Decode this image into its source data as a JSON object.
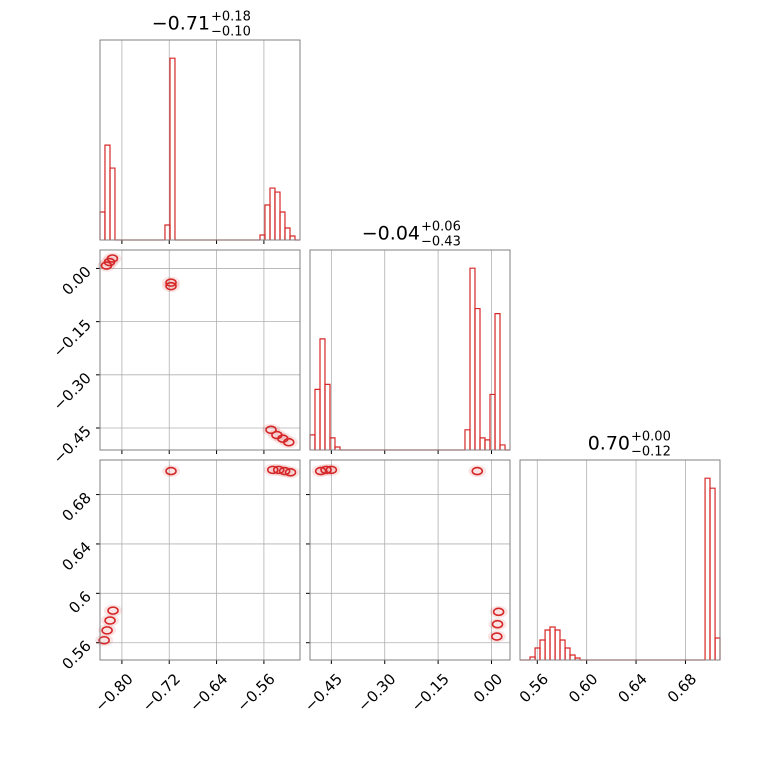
{
  "chart_data": [
    {
      "type": "histogram",
      "title": {
        "value": "−0.71",
        "upper": "+0.18",
        "lower": "−0.10"
      },
      "color": "#d62728",
      "grid": true,
      "xlim": [
        -0.837,
        -0.499
      ],
      "xticks": [
        -0.8,
        -0.72,
        -0.64,
        -0.56
      ],
      "bins": [
        -0.837,
        -0.8286,
        -0.8201,
        -0.8117,
        -0.8032,
        -0.7948,
        -0.7863,
        -0.7779,
        -0.7694,
        -0.761,
        -0.7525,
        -0.7441,
        -0.7356,
        -0.7272,
        -0.7187,
        -0.7103,
        -0.7018,
        -0.6934,
        -0.6849,
        -0.6765,
        -0.668,
        -0.6596,
        -0.6511,
        -0.6427,
        -0.6342,
        -0.6258,
        -0.6173,
        -0.6089,
        -0.6004,
        -0.592,
        -0.5835,
        -0.5751,
        -0.5666,
        -0.5582,
        -0.5497,
        -0.5413,
        -0.5328,
        -0.5244,
        -0.5159,
        -0.5075,
        -0.499
      ],
      "values": [
        28,
        95,
        72,
        0,
        0,
        0,
        0,
        0,
        0,
        0,
        0,
        0,
        0,
        15,
        182,
        0,
        0,
        0,
        0,
        0,
        0,
        0,
        0,
        0,
        0,
        0,
        0,
        0,
        0,
        0,
        0,
        0,
        5,
        35,
        52,
        48,
        28,
        12,
        4,
        0
      ]
    },
    {
      "type": "scatter",
      "color": "#d62728",
      "grid": true,
      "xlim": [
        -0.837,
        -0.499
      ],
      "xticks": [
        -0.8,
        -0.72,
        -0.64,
        -0.56
      ],
      "ylim": [
        -0.512,
        0.052
      ],
      "yticks": [
        {
          "value": 0,
          "label": "0.00"
        },
        {
          "value": -0.15,
          "label": "−0.15"
        },
        {
          "value": -0.3,
          "label": "−0.30"
        },
        {
          "value": -0.45,
          "label": "−0.45"
        }
      ],
      "x": [
        -0.826,
        -0.821,
        -0.816,
        -0.717,
        -0.717,
        -0.548,
        -0.538,
        -0.528,
        -0.518
      ],
      "y": [
        0.008,
        0.018,
        0.028,
        -0.04,
        -0.05,
        -0.455,
        -0.47,
        -0.48,
        -0.49
      ]
    },
    {
      "type": "histogram",
      "title": {
        "value": "−0.04",
        "upper": "+0.06",
        "lower": "−0.43"
      },
      "color": "#d62728",
      "grid": true,
      "xlim": [
        -0.51,
        0.052
      ],
      "xticks": [
        -0.45,
        -0.3,
        -0.15,
        0
      ],
      "bins": [
        -0.51,
        -0.496,
        -0.4819,
        -0.4679,
        -0.4538,
        -0.4398,
        -0.4257,
        -0.4117,
        -0.3976,
        -0.3836,
        -0.3695,
        -0.3555,
        -0.3414,
        -0.3274,
        -0.3133,
        -0.2993,
        -0.2852,
        -0.2712,
        -0.2571,
        -0.2431,
        -0.229,
        -0.215,
        -0.2009,
        -0.1869,
        -0.1728,
        -0.1588,
        -0.1447,
        -0.1307,
        -0.1166,
        -0.1026,
        -0.0885,
        -0.0745,
        -0.0604,
        -0.0464,
        -0.0323,
        -0.0183,
        -0.0042,
        0.0099,
        0.0239,
        0.038,
        0.052
      ],
      "values": [
        15,
        60,
        110,
        65,
        12,
        3,
        0,
        0,
        0,
        0,
        0,
        0,
        0,
        0,
        0,
        0,
        0,
        0,
        0,
        0,
        0,
        0,
        0,
        0,
        0,
        0,
        0,
        0,
        0,
        0,
        0,
        20,
        180,
        140,
        12,
        10,
        55,
        135,
        5,
        0
      ]
    },
    {
      "type": "scatter",
      "color": "#d62728",
      "grid": true,
      "xlim": [
        -0.837,
        -0.499
      ],
      "xticks": [
        {
          "value": -0.8,
          "label": "−0.80"
        },
        {
          "value": -0.72,
          "label": "−0.72"
        },
        {
          "value": -0.64,
          "label": "−0.64"
        },
        {
          "value": -0.56,
          "label": "−0.56"
        }
      ],
      "ylim": [
        0.546,
        0.708
      ],
      "yticks": [
        0.56,
        0.6,
        0.64,
        0.68
      ],
      "x": [
        -0.83,
        -0.825,
        -0.82,
        -0.815,
        -0.717,
        -0.545,
        -0.535,
        -0.525,
        -0.515
      ],
      "y": [
        0.562,
        0.57,
        0.578,
        0.586,
        0.699,
        0.7,
        0.7,
        0.699,
        0.698
      ]
    },
    {
      "type": "scatter",
      "color": "#d62728",
      "grid": true,
      "xlim": [
        -0.51,
        0.052
      ],
      "xticks": [
        {
          "value": -0.45,
          "label": "−0.45"
        },
        {
          "value": -0.3,
          "label": "−0.30"
        },
        {
          "value": -0.15,
          "label": "−0.15"
        },
        {
          "value": 0,
          "label": "0.00"
        }
      ],
      "ylim": [
        0.546,
        0.708
      ],
      "yticks": [
        0.56,
        0.6,
        0.64,
        0.68
      ],
      "x": [
        -0.48,
        -0.465,
        -0.45,
        -0.04,
        0.015,
        0.017,
        0.02
      ],
      "y": [
        0.699,
        0.7,
        0.7,
        0.699,
        0.565,
        0.575,
        0.585
      ]
    },
    {
      "type": "histogram",
      "title": {
        "value": "0.70",
        "upper": "+0.00",
        "lower": "−0.12"
      },
      "color": "#d62728",
      "grid": true,
      "xlim": [
        0.546,
        0.708
      ],
      "xticks": [
        0.56,
        {
          "value": 0.6,
          "label": "0.60"
        },
        0.64,
        0.68
      ],
      "bins": [
        0.546,
        0.5501,
        0.5541,
        0.5582,
        0.5622,
        0.5663,
        0.5703,
        0.5744,
        0.5784,
        0.5825,
        0.5865,
        0.5906,
        0.5946,
        0.5987,
        0.6027,
        0.6068,
        0.6108,
        0.6149,
        0.6189,
        0.623,
        0.627,
        0.6311,
        0.6351,
        0.6392,
        0.6432,
        0.6473,
        0.6513,
        0.6554,
        0.6594,
        0.6635,
        0.6675,
        0.6716,
        0.6756,
        0.6797,
        0.6837,
        0.6878,
        0.6918,
        0.6959,
        0.6999,
        0.704,
        0.708
      ],
      "values": [
        0,
        0,
        3,
        12,
        20,
        30,
        33,
        30,
        20,
        12,
        5,
        2,
        0,
        0,
        0,
        0,
        0,
        0,
        0,
        0,
        0,
        0,
        0,
        0,
        0,
        0,
        0,
        0,
        0,
        0,
        0,
        0,
        0,
        0,
        0,
        0,
        0,
        182,
        172,
        22
      ]
    }
  ]
}
